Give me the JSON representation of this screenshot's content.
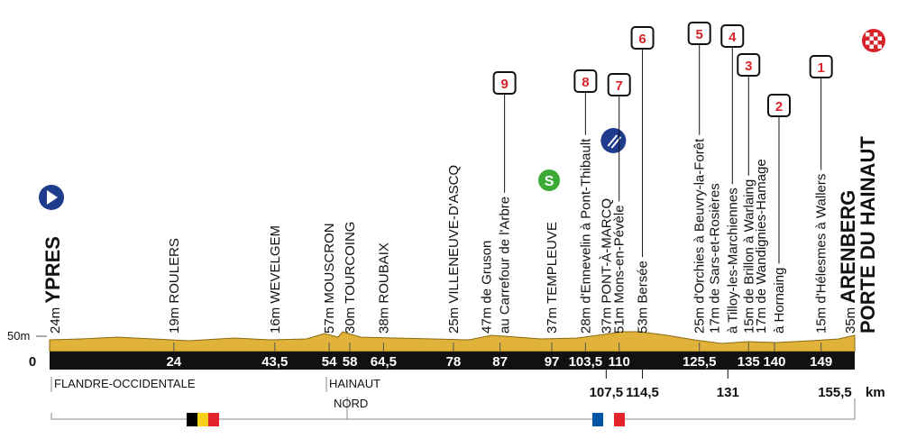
{
  "scale": {
    "altitude_label": "50m",
    "zero": "0",
    "unit": "km"
  },
  "start": {
    "altitude": "24m",
    "name": "YPRES"
  },
  "points": [
    {
      "altitude": "19m",
      "lines": [
        "ROULERS"
      ],
      "km": "24"
    },
    {
      "altitude": "16m",
      "lines": [
        "WEVELGEM"
      ],
      "km": "43,5"
    },
    {
      "altitude": "57m",
      "lines": [
        "MOUSCRON"
      ],
      "km": "54"
    },
    {
      "altitude": "30m",
      "lines": [
        "TOURCOING"
      ],
      "km": "58"
    },
    {
      "altitude": "38m",
      "lines": [
        "ROUBAIX"
      ],
      "km": "64,5"
    },
    {
      "altitude": "25m",
      "lines": [
        "VILLENEUVE-D'ASCQ"
      ],
      "km": "78"
    },
    {
      "altitude": "47m",
      "lines": [
        "de Gruson",
        "au Carrefour de l'Arbre"
      ],
      "km": "87",
      "sector": "9"
    },
    {
      "altitude": "37m",
      "lines": [
        "TEMPLEUVE"
      ],
      "km": "97",
      "icon": "sprint",
      "icon_text": "S"
    },
    {
      "altitude": "28m",
      "lines": [
        "d'Ennevelin à Pont-Thibault"
      ],
      "km": "103,5",
      "sector": "8"
    },
    {
      "altitude": "37m",
      "lines": [
        "PONT-À-MARCQ"
      ],
      "km": "107,5",
      "below": true,
      "icon": "feed"
    },
    {
      "altitude": "51m",
      "lines": [
        "Mons-en-Pévèle"
      ],
      "km": "110",
      "sector": "7"
    },
    {
      "altitude": "53m",
      "lines": [
        "Bersée"
      ],
      "km": "114,5",
      "below": true,
      "sector": "6"
    },
    {
      "altitude": "25m",
      "lines": [
        "d'Orchies à Beuvry-la-Forêt"
      ],
      "km": "125,5",
      "sector": "5"
    },
    {
      "altitude": "17m",
      "lines": [
        "de Sars-et-Rosières",
        "à Tilloy-les-Marchiennes"
      ],
      "km": "131",
      "below": true,
      "sector": "4"
    },
    {
      "altitude": "15m",
      "lines": [
        "de Brillon à Warlaing"
      ],
      "km": "135",
      "sector": "3"
    },
    {
      "altitude": "17m",
      "lines": [
        "de Wandignies-Hamage",
        "à Hornaing"
      ],
      "km": "140",
      "sector": "2"
    },
    {
      "altitude": "15m",
      "lines": [
        "d'Hélesmes à Wallers"
      ],
      "km": "149",
      "sector": "1"
    }
  ],
  "finish": {
    "altitude": "35m",
    "lines": [
      "ARENBERG",
      "PORTE DU HAINAUT"
    ],
    "km": "155,5"
  },
  "regions": [
    "FLANDRE-OCCIDENTALE",
    "HAINAUT",
    "NORD"
  ]
}
